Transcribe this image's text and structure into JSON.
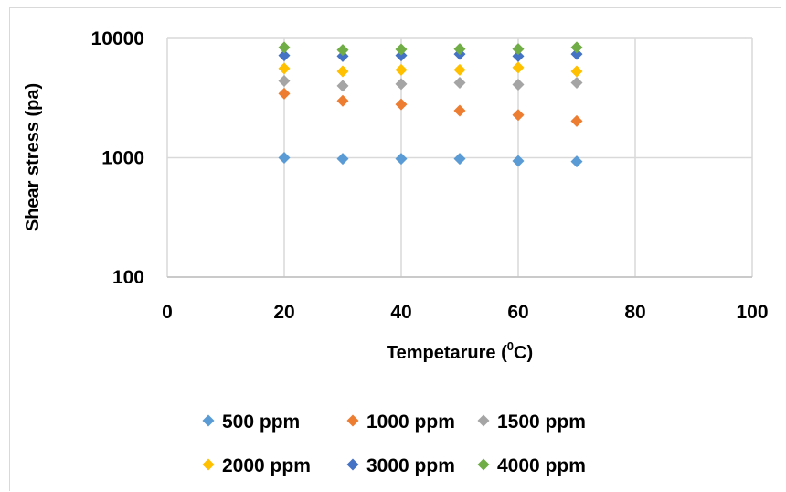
{
  "chart_data": {
    "type": "scatter",
    "title": "",
    "xlabel": "Tempetarure (",
    "xlabel_sup": "0",
    "xlabel_tail": "C)",
    "ylabel": "Shear stress (pa)",
    "xlim": [
      0,
      100
    ],
    "ylim": [
      100,
      10000
    ],
    "yscale": "log",
    "grid": true,
    "legend_position": "bottom",
    "x_ticks": [
      "0",
      "20",
      "40",
      "60",
      "80",
      "100"
    ],
    "y_ticks": [
      "100",
      "1000",
      "10000"
    ],
    "x": [
      20,
      30,
      40,
      50,
      60,
      70
    ],
    "series": [
      {
        "name": "500 ppm",
        "color": "#5b9bd5",
        "values": [
          1000,
          980,
          980,
          980,
          940,
          930
        ]
      },
      {
        "name": "1000 ppm",
        "color": "#ed7d31",
        "values": [
          3450,
          3000,
          2800,
          2480,
          2280,
          2030
        ]
      },
      {
        "name": "1500 ppm",
        "color": "#a5a5a5",
        "values": [
          4400,
          4000,
          4150,
          4250,
          4100,
          4250
        ]
      },
      {
        "name": "2000 ppm",
        "color": "#ffc000",
        "values": [
          5600,
          5300,
          5450,
          5450,
          5700,
          5300
        ]
      },
      {
        "name": "3000 ppm",
        "color": "#4472c4",
        "values": [
          7200,
          7100,
          7200,
          7400,
          7100,
          7400
        ]
      },
      {
        "name": "4000 ppm",
        "color": "#70ad47",
        "values": [
          8400,
          8000,
          8100,
          8150,
          8150,
          8400
        ]
      }
    ]
  }
}
